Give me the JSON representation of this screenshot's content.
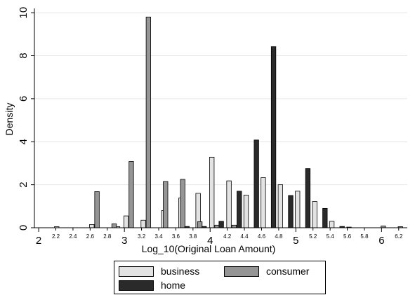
{
  "chart_data": {
    "type": "bar",
    "xlabel": "Log_10(Original Loan Amount)",
    "ylabel": "Density",
    "xlim": [
      1.95,
      6.3
    ],
    "ylim": [
      0,
      10.2
    ],
    "major_xticks": [
      {
        "v": 2,
        "label": "2"
      },
      {
        "v": 3,
        "label": "3"
      },
      {
        "v": 4,
        "label": "4"
      },
      {
        "v": 5,
        "label": "5"
      },
      {
        "v": 6,
        "label": "6"
      }
    ],
    "minor_xticks": [
      {
        "v": 2.2,
        "label": "2.2"
      },
      {
        "v": 2.4,
        "label": "2.4"
      },
      {
        "v": 2.6,
        "label": "2.6"
      },
      {
        "v": 2.8,
        "label": "2.8"
      },
      {
        "v": 3.2,
        "label": "3.2"
      },
      {
        "v": 3.4,
        "label": "3.4"
      },
      {
        "v": 3.6,
        "label": "3.6"
      },
      {
        "v": 3.8,
        "label": "3.8"
      },
      {
        "v": 4.2,
        "label": "4.2"
      },
      {
        "v": 4.4,
        "label": "4.4"
      },
      {
        "v": 4.6,
        "label": "4.6"
      },
      {
        "v": 4.8,
        "label": "4.8"
      },
      {
        "v": 5.2,
        "label": "5.2"
      },
      {
        "v": 5.4,
        "label": "5.4"
      },
      {
        "v": 5.6,
        "label": "5.6"
      },
      {
        "v": 5.8,
        "label": "5.8"
      },
      {
        "v": 6.2,
        "label": "6.2"
      }
    ],
    "yticks": [
      {
        "v": 0,
        "label": "0"
      },
      {
        "v": 2,
        "label": "2"
      },
      {
        "v": 4,
        "label": "4"
      },
      {
        "v": 6,
        "label": "6"
      },
      {
        "v": 8,
        "label": "8"
      },
      {
        "v": 10,
        "label": "10"
      }
    ],
    "grid": true,
    "legend_position": "bottom",
    "series": [
      {
        "name": "business",
        "color": "#e3e3e3",
        "points": [
          {
            "x": 2.21,
            "y": 0.05
          },
          {
            "x": 2.62,
            "y": 0.15
          },
          {
            "x": 2.92,
            "y": 0.05
          },
          {
            "x": 3.02,
            "y": 0.55
          },
          {
            "x": 3.22,
            "y": 0.35
          },
          {
            "x": 3.46,
            "y": 0.8
          },
          {
            "x": 3.66,
            "y": 1.38
          },
          {
            "x": 3.86,
            "y": 1.6
          },
          {
            "x": 4.02,
            "y": 3.28
          },
          {
            "x": 4.22,
            "y": 2.18
          },
          {
            "x": 4.42,
            "y": 1.52
          },
          {
            "x": 4.62,
            "y": 2.33
          },
          {
            "x": 4.82,
            "y": 2.0
          },
          {
            "x": 5.02,
            "y": 1.7
          },
          {
            "x": 5.22,
            "y": 1.22
          },
          {
            "x": 5.42,
            "y": 0.3
          }
        ]
      },
      {
        "name": "consumer",
        "color": "#959595",
        "points": [
          {
            "x": 2.68,
            "y": 1.68
          },
          {
            "x": 2.88,
            "y": 0.18
          },
          {
            "x": 3.08,
            "y": 3.08
          },
          {
            "x": 3.28,
            "y": 9.8
          },
          {
            "x": 3.48,
            "y": 2.15
          },
          {
            "x": 3.68,
            "y": 2.25
          },
          {
            "x": 3.88,
            "y": 0.28
          },
          {
            "x": 4.08,
            "y": 0.12
          },
          {
            "x": 4.28,
            "y": 0.12
          },
          {
            "x": 5.62,
            "y": 0.03
          },
          {
            "x": 6.02,
            "y": 0.08
          },
          {
            "x": 6.22,
            "y": 0.05
          }
        ]
      },
      {
        "name": "home",
        "color": "#2a2a2a",
        "points": [
          {
            "x": 3.73,
            "y": 0.06
          },
          {
            "x": 3.93,
            "y": 0.06
          },
          {
            "x": 4.13,
            "y": 0.3
          },
          {
            "x": 4.34,
            "y": 1.7
          },
          {
            "x": 4.54,
            "y": 4.08
          },
          {
            "x": 4.74,
            "y": 8.42
          },
          {
            "x": 4.94,
            "y": 1.5
          },
          {
            "x": 5.14,
            "y": 2.75
          },
          {
            "x": 5.34,
            "y": 0.9
          },
          {
            "x": 5.54,
            "y": 0.06
          }
        ]
      }
    ]
  },
  "legend": {
    "items": [
      {
        "label": "business",
        "color": "#e3e3e3"
      },
      {
        "label": "consumer",
        "color": "#959595"
      },
      {
        "label": "home",
        "color": "#2a2a2a"
      }
    ]
  }
}
